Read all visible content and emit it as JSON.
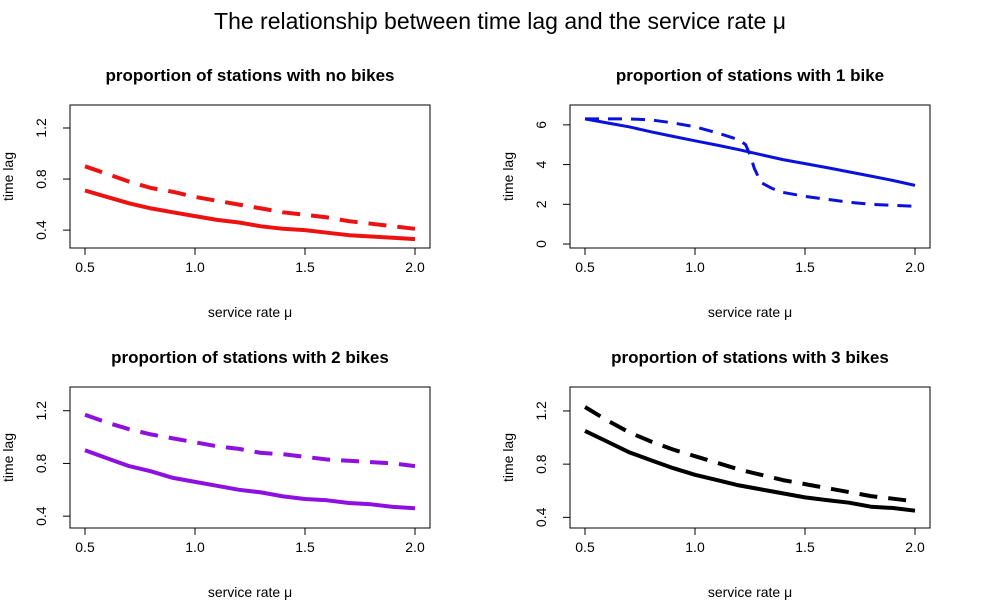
{
  "figure_title": "The relationship between time lag and the service rate μ",
  "chart_data": [
    {
      "type": "line",
      "title": "proportion of stations with no bikes",
      "xlabel": "service rate μ",
      "ylabel": "time lag",
      "xlim": [
        0.5,
        2.0
      ],
      "ylim": [
        0.26,
        1.38
      ],
      "xticks": [
        0.5,
        1.0,
        1.5,
        2.0
      ],
      "xtick_labels": [
        "0.5",
        "1.0",
        "1.5",
        "2.0"
      ],
      "yticks": [
        0.4,
        0.8,
        1.2
      ],
      "ytick_labels": [
        "0.4",
        "0.8",
        "1.2"
      ],
      "color": "#ee1111",
      "x": [
        0.5,
        0.6,
        0.7,
        0.8,
        0.9,
        1.0,
        1.1,
        1.2,
        1.3,
        1.4,
        1.5,
        1.6,
        1.7,
        1.8,
        1.9,
        2.0
      ],
      "series": [
        {
          "name": "solid",
          "style": "solid",
          "values": [
            0.71,
            0.66,
            0.61,
            0.57,
            0.54,
            0.51,
            0.48,
            0.46,
            0.43,
            0.41,
            0.4,
            0.38,
            0.36,
            0.35,
            0.34,
            0.33
          ]
        },
        {
          "name": "dashed",
          "style": "dashed",
          "values": [
            0.9,
            0.84,
            0.78,
            0.73,
            0.7,
            0.66,
            0.63,
            0.6,
            0.57,
            0.54,
            0.52,
            0.5,
            0.47,
            0.45,
            0.43,
            0.41
          ]
        }
      ]
    },
    {
      "type": "line",
      "title": "proportion of stations with 1 bike",
      "xlabel": "service rate μ",
      "ylabel": "time lag",
      "xlim": [
        0.5,
        2.0
      ],
      "ylim": [
        -0.2,
        7.0
      ],
      "xticks": [
        0.5,
        1.0,
        1.5,
        2.0
      ],
      "xtick_labels": [
        "0.5",
        "1.0",
        "1.5",
        "2.0"
      ],
      "yticks": [
        0,
        2,
        4,
        6
      ],
      "ytick_labels": [
        "0",
        "2",
        "4",
        "6"
      ],
      "color": "#0a10dd",
      "series": [
        {
          "name": "solid",
          "style": "solid",
          "x": [
            0.5,
            0.6,
            0.7,
            0.8,
            0.9,
            1.0,
            1.1,
            1.2,
            1.3,
            1.4,
            1.5,
            1.6,
            1.7,
            1.8,
            1.9,
            2.0
          ],
          "values": [
            6.3,
            6.1,
            5.9,
            5.65,
            5.42,
            5.2,
            4.98,
            4.75,
            4.5,
            4.25,
            4.05,
            3.85,
            3.63,
            3.42,
            3.2,
            2.95
          ]
        },
        {
          "name": "dashed",
          "style": "dashed",
          "x": [
            0.5,
            0.6,
            0.7,
            0.8,
            0.9,
            1.0,
            1.1,
            1.2,
            1.23,
            1.25,
            1.27,
            1.3,
            1.35,
            1.4,
            1.5,
            1.6,
            1.7,
            1.8,
            1.9,
            2.0
          ],
          "values": [
            6.3,
            6.3,
            6.3,
            6.25,
            6.1,
            5.9,
            5.6,
            5.25,
            5.0,
            4.5,
            3.8,
            3.1,
            2.8,
            2.6,
            2.4,
            2.25,
            2.1,
            2.0,
            1.95,
            1.9
          ]
        }
      ]
    },
    {
      "type": "line",
      "title": "proportion of stations with 2 bikes",
      "xlabel": "service rate μ",
      "ylabel": "time lag",
      "xlim": [
        0.5,
        2.0
      ],
      "ylim": [
        0.31,
        1.38
      ],
      "xticks": [
        0.5,
        1.0,
        1.5,
        2.0
      ],
      "xtick_labels": [
        "0.5",
        "1.0",
        "1.5",
        "2.0"
      ],
      "yticks": [
        0.4,
        0.8,
        1.2
      ],
      "ytick_labels": [
        "0.4",
        "0.8",
        "1.2"
      ],
      "color": "#8e10e0",
      "x": [
        0.5,
        0.6,
        0.7,
        0.8,
        0.9,
        1.0,
        1.1,
        1.2,
        1.3,
        1.4,
        1.5,
        1.6,
        1.7,
        1.8,
        1.9,
        2.0
      ],
      "series": [
        {
          "name": "solid",
          "style": "solid",
          "values": [
            0.9,
            0.84,
            0.78,
            0.74,
            0.69,
            0.66,
            0.63,
            0.6,
            0.58,
            0.55,
            0.53,
            0.52,
            0.5,
            0.49,
            0.47,
            0.46
          ]
        },
        {
          "name": "dashed",
          "style": "dashed",
          "values": [
            1.17,
            1.11,
            1.06,
            1.02,
            0.99,
            0.96,
            0.93,
            0.91,
            0.88,
            0.87,
            0.85,
            0.83,
            0.82,
            0.81,
            0.8,
            0.78
          ]
        }
      ]
    },
    {
      "type": "line",
      "title": "proportion of stations with 3 bikes",
      "xlabel": "service rate μ",
      "ylabel": "time lag",
      "xlim": [
        0.5,
        2.0
      ],
      "ylim": [
        0.32,
        1.38
      ],
      "xticks": [
        0.5,
        1.0,
        1.5,
        2.0
      ],
      "xtick_labels": [
        "0.5",
        "1.0",
        "1.5",
        "2.0"
      ],
      "yticks": [
        0.4,
        0.8,
        1.2
      ],
      "ytick_labels": [
        "0.4",
        "0.8",
        "1.2"
      ],
      "color": "#000000",
      "x": [
        0.5,
        0.6,
        0.7,
        0.8,
        0.9,
        1.0,
        1.1,
        1.2,
        1.3,
        1.4,
        1.5,
        1.6,
        1.7,
        1.8,
        1.9,
        2.0
      ],
      "series": [
        {
          "name": "solid",
          "style": "solid",
          "values": [
            1.05,
            0.97,
            0.89,
            0.83,
            0.77,
            0.72,
            0.68,
            0.64,
            0.61,
            0.58,
            0.55,
            0.53,
            0.51,
            0.48,
            0.47,
            0.45
          ]
        },
        {
          "name": "dashed",
          "style": "dashed",
          "values": [
            1.23,
            1.13,
            1.04,
            0.97,
            0.91,
            0.86,
            0.81,
            0.76,
            0.72,
            0.68,
            0.65,
            0.62,
            0.59,
            0.56,
            0.54,
            0.52
          ]
        }
      ]
    }
  ]
}
